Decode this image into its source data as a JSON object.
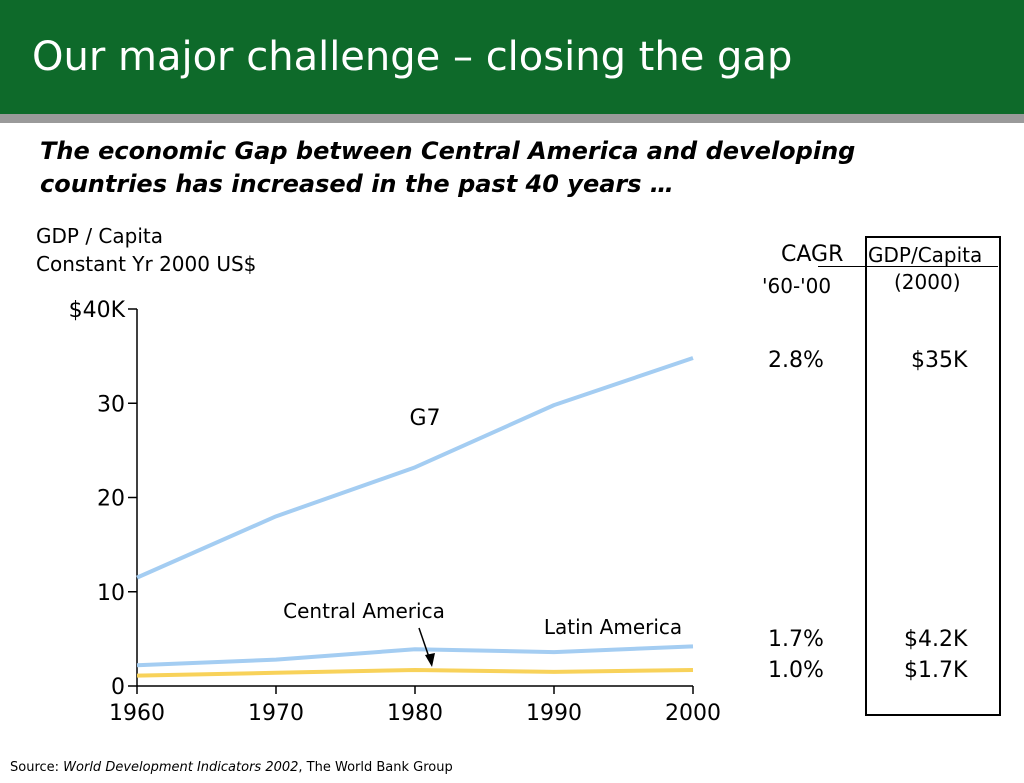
{
  "header": {
    "title": "Our major challenge – closing the gap",
    "background_color": "#0e6a2a"
  },
  "subtitle": "The economic Gap between Central America and developing countries has increased in the past 40 years …",
  "yaxis_title": {
    "line1": "GDP / Capita",
    "line2": "Constant Yr 2000 US$"
  },
  "chart_data": {
    "type": "line",
    "x": [
      1960,
      1970,
      1980,
      1990,
      2000
    ],
    "xticks": [
      "1960",
      "1970",
      "1980",
      "1990",
      "2000"
    ],
    "yticks": [
      {
        "value": 0,
        "label": "0"
      },
      {
        "value": 10,
        "label": "10"
      },
      {
        "value": 20,
        "label": "20"
      },
      {
        "value": 30,
        "label": "30"
      },
      {
        "value": 40,
        "label": "$40K"
      }
    ],
    "ylim": [
      0,
      40
    ],
    "xlim": [
      1960,
      2000
    ],
    "grid": false,
    "series": [
      {
        "name": "G7",
        "values": [
          11.5,
          18.0,
          23.2,
          29.8,
          34.8
        ],
        "color": "#a4cdf2"
      },
      {
        "name": "Latin America",
        "values": [
          2.2,
          2.8,
          3.9,
          3.6,
          4.2
        ],
        "color": "#a4cdf2"
      },
      {
        "name": "Central America",
        "values": [
          1.1,
          1.4,
          1.7,
          1.5,
          1.7
        ],
        "color": "#f8d25a"
      }
    ]
  },
  "table": {
    "cagr_label": "CAGR",
    "cagr_range": "'60-'00",
    "gdp_label": "GDP/Capita",
    "gdp_year": "(2000)",
    "rows": [
      {
        "cagr": "2.8%",
        "gdp": "$35K"
      },
      {
        "cagr": "1.7%",
        "gdp": "$4.2K"
      },
      {
        "cagr": "1.0%",
        "gdp": "$1.7K"
      }
    ]
  },
  "source": {
    "prefix": "Source: ",
    "title": "World Development Indicators 2002",
    "suffix": ", The World Bank Group"
  }
}
